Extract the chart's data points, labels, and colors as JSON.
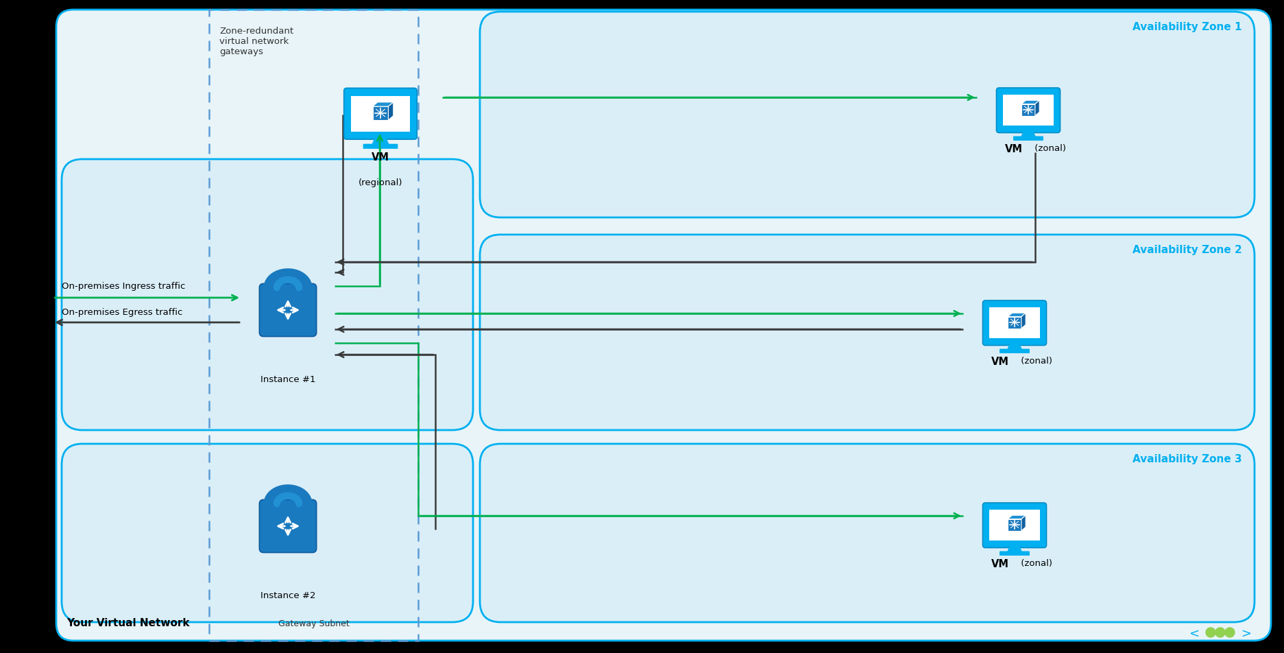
{
  "fig_width": 18.73,
  "fig_height": 9.52,
  "outer_bg": "#e8f4f8",
  "outer_border": "#00b0f0",
  "zone_bg": "#daeef7",
  "zone_border": "#00b0f0",
  "dashed_border": "#5b9bd5",
  "arrow_green": "#00b050",
  "arrow_black": "#3a3a3a",
  "zone_label_color": "#00b0f0",
  "text_dark": "#333333",
  "zones": [
    "Availability Zone 1",
    "Availability Zone 2",
    "Availability Zone 3"
  ],
  "your_network_label": "Your Virtual Network",
  "gateway_subnet_label": "Gateway Subnet",
  "zone_redundant_label": "Zone-redundant\nvirtual network\ngateways",
  "ingress_label": "On-premises Ingress traffic",
  "egress_label": "On-premises Egress traffic",
  "instance1_label": "Instance #1",
  "instance2_label": "Instance #2",
  "lock_color": "#1a7abf",
  "lock_dark": "#0d5a9e",
  "lock_mid": "#2191d4",
  "monitor_color": "#00b0f0",
  "monitor_dark": "#008cc8",
  "cube_front": "#1a7abf",
  "cube_top": "#2191d4",
  "cube_right": "#1060a0",
  "white": "#ffffff",
  "black_bg": "#000000",
  "green_dot": "#92d050"
}
